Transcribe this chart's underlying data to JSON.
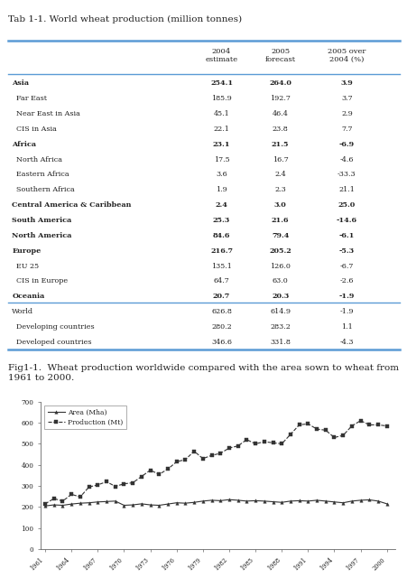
{
  "table_title": "Tab 1-1. World wheat production (million tonnes)",
  "fig_caption": "Fig1-1.  Wheat production worldwide compared with the area sown to wheat from\n1961 to 2000.",
  "rows": [
    [
      "Asia",
      "254.1",
      "264.0",
      "3.9",
      true
    ],
    [
      "  Far East",
      "185.9",
      "192.7",
      "3.7",
      false
    ],
    [
      "  Near East in Asia",
      "45.1",
      "46.4",
      "2.9",
      false
    ],
    [
      "  CIS in Asia",
      "22.1",
      "23.8",
      "7.7",
      false
    ],
    [
      "Africa",
      "23.1",
      "21.5",
      "-6.9",
      true
    ],
    [
      "  North Africa",
      "17.5",
      "16.7",
      "-4.6",
      false
    ],
    [
      "  Eastern Africa",
      "3.6",
      "2.4",
      "-33.3",
      false
    ],
    [
      "  Southern Africa",
      "1.9",
      "2.3",
      "21.1",
      false
    ],
    [
      "Central America & Caribbean",
      "2.4",
      "3.0",
      "25.0",
      true
    ],
    [
      "South America",
      "25.3",
      "21.6",
      "-14.6",
      true
    ],
    [
      "North America",
      "84.6",
      "79.4",
      "-6.1",
      true
    ],
    [
      "Europe",
      "216.7",
      "205.2",
      "-5.3",
      true
    ],
    [
      "  EU 25",
      "135.1",
      "126.0",
      "-6.7",
      false
    ],
    [
      "  CIS in Europe",
      "64.7",
      "63.0",
      "-2.6",
      false
    ],
    [
      "Oceania",
      "20.7",
      "20.3",
      "-1.9",
      true
    ],
    [
      "World",
      "626.8",
      "614.9",
      "-1.9",
      false
    ],
    [
      "  Developing countries",
      "280.2",
      "283.2",
      "1.1",
      false
    ],
    [
      "  Developed countries",
      "346.6",
      "331.8",
      "-4.3",
      false
    ]
  ],
  "line_color": "#5b9bd5",
  "bg_color": "#ffffff",
  "years": [
    1961,
    1962,
    1963,
    1964,
    1965,
    1966,
    1967,
    1968,
    1969,
    1970,
    1971,
    1972,
    1973,
    1974,
    1975,
    1976,
    1977,
    1978,
    1979,
    1980,
    1981,
    1982,
    1983,
    1984,
    1985,
    1986,
    1987,
    1988,
    1989,
    1990,
    1991,
    1992,
    1993,
    1994,
    1995,
    1996,
    1997,
    1998,
    1999,
    2000
  ],
  "area_mha": [
    205,
    210,
    208,
    214,
    218,
    220,
    224,
    226,
    228,
    208,
    210,
    215,
    210,
    208,
    214,
    220,
    218,
    222,
    228,
    232,
    230,
    235,
    232,
    228,
    230,
    228,
    225,
    222,
    228,
    230,
    228,
    232,
    228,
    224,
    220,
    228,
    232,
    234,
    228,
    215
  ],
  "production_mt": [
    215,
    240,
    228,
    260,
    248,
    295,
    305,
    320,
    298,
    310,
    315,
    345,
    375,
    355,
    380,
    415,
    425,
    465,
    430,
    445,
    455,
    480,
    490,
    520,
    500,
    510,
    505,
    500,
    545,
    590,
    595,
    570,
    565,
    530,
    540,
    585,
    610,
    590,
    590,
    585
  ]
}
